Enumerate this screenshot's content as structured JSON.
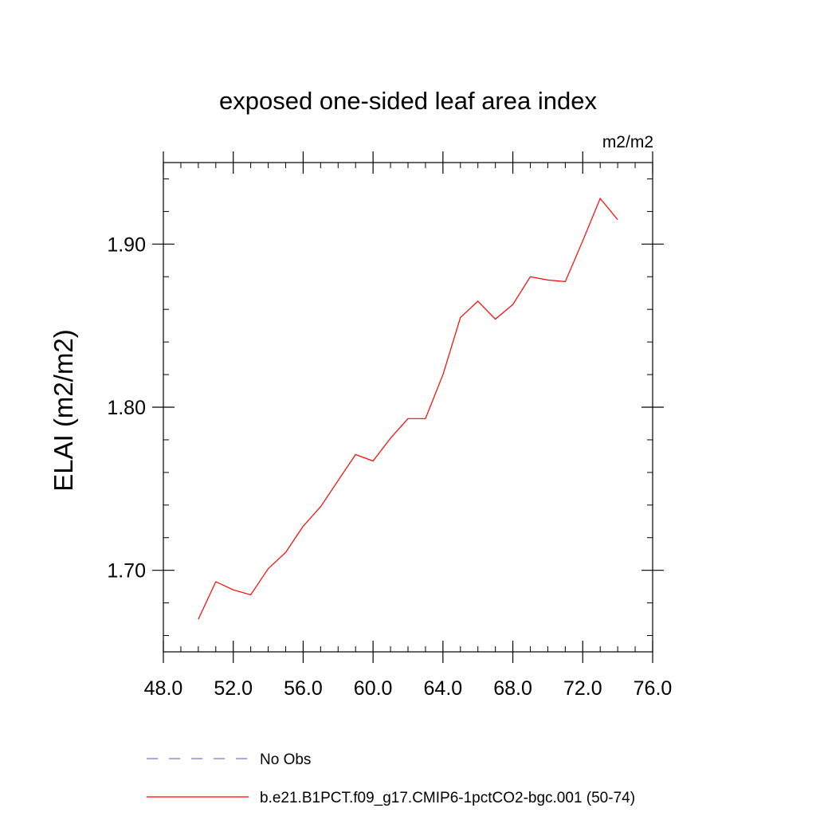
{
  "chart_data": {
    "type": "line",
    "title": "exposed one-sided leaf area index",
    "units_label": "m2/m2",
    "ylabel": "ELAI  (m2/m2)",
    "xlabel": "",
    "xlim": [
      48,
      76
    ],
    "ylim": [
      1.65,
      1.95
    ],
    "x_ticks": [
      48,
      52,
      56,
      60,
      64,
      68,
      72,
      76
    ],
    "x_tick_labels": [
      "48.0",
      "52.0",
      "56.0",
      "60.0",
      "64.0",
      "68.0",
      "72.0",
      "76.0"
    ],
    "x_minor_step": 1,
    "y_ticks": [
      1.7,
      1.8,
      1.9
    ],
    "y_tick_labels": [
      "1.70",
      "1.80",
      "1.90"
    ],
    "y_minor_step": 0.02,
    "grid": false,
    "series": [
      {
        "name": "b.e21.B1PCT.f09_g17.CMIP6-1pctCO2-bgc.001 (50-74)",
        "color": "#ff0000",
        "style": "solid",
        "x": [
          50,
          51,
          52,
          53,
          54,
          55,
          56,
          57,
          58,
          59,
          60,
          61,
          62,
          63,
          64,
          65,
          66,
          67,
          68,
          69,
          70,
          71,
          72,
          73,
          74
        ],
        "y": [
          1.67,
          1.693,
          1.688,
          1.685,
          1.701,
          1.711,
          1.727,
          1.739,
          1.755,
          1.771,
          1.767,
          1.781,
          1.793,
          1.793,
          1.82,
          1.855,
          1.865,
          1.854,
          1.863,
          1.88,
          1.878,
          1.877,
          1.902,
          1.928,
          1.915
        ]
      }
    ],
    "legend": {
      "placement": "bottom",
      "entries": [
        {
          "label": "No Obs",
          "color": "#7b74c9",
          "style": "dashed"
        },
        {
          "label": "b.e21.B1PCT.f09_g17.CMIP6-1pctCO2-bgc.001 (50-74)",
          "color": "#ff0000",
          "style": "solid"
        }
      ]
    }
  }
}
